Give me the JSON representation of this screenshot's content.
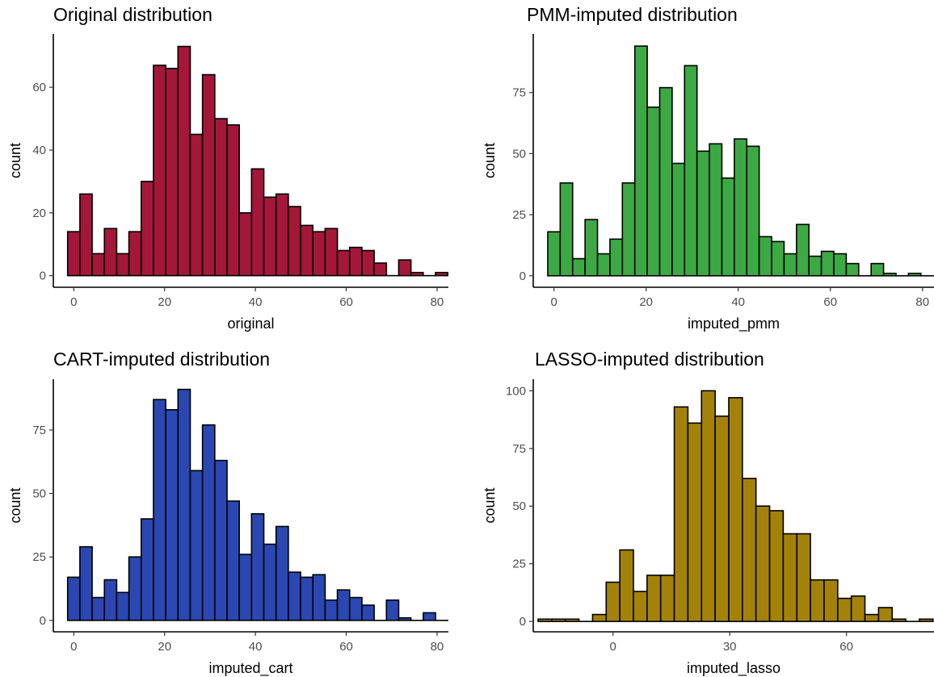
{
  "colors": {
    "original": "#A51739",
    "pmm": "#3DA944",
    "cart": "#2A47B2",
    "lasso": "#A3820A",
    "bar_outline": "#000000"
  },
  "chart_data": [
    {
      "type": "bar",
      "title": "Original distribution",
      "xlabel": "original",
      "ylabel": "count",
      "x_ticks": [
        0,
        20,
        40,
        60,
        80
      ],
      "y_ticks": [
        0,
        20,
        40,
        60
      ],
      "bin_width": 2.7,
      "bin_centers": [
        0,
        2.7,
        5.4,
        8.1,
        10.8,
        13.5,
        16.2,
        18.9,
        21.6,
        24.3,
        27,
        29.7,
        32.4,
        35.1,
        37.8,
        40.5,
        43.2,
        45.9,
        48.6,
        51.3,
        54,
        56.7,
        59.4,
        62.1,
        64.8,
        67.5,
        70.2,
        72.9,
        75.6,
        78.3,
        81
      ],
      "values": [
        14,
        26,
        7,
        15,
        7,
        14,
        30,
        67,
        66,
        73,
        45,
        64,
        50,
        48,
        20,
        34,
        25,
        26,
        22,
        16,
        14,
        15,
        8,
        9,
        8,
        4,
        0,
        5,
        1,
        0,
        1
      ],
      "xlim": [
        -4.5,
        82.5
      ],
      "ylim": [
        -3.7,
        77
      ],
      "grid": false,
      "color_key": "original"
    },
    {
      "type": "bar",
      "title": "PMM-imputed distribution",
      "xlabel": "imputed_pmm",
      "ylabel": "count",
      "x_ticks": [
        0,
        20,
        40,
        60,
        80
      ],
      "y_ticks": [
        0,
        25,
        50,
        75
      ],
      "bin_width": 2.7,
      "bin_centers": [
        0,
        2.7,
        5.4,
        8.1,
        10.8,
        13.5,
        16.2,
        18.9,
        21.6,
        24.3,
        27,
        29.7,
        32.4,
        35.1,
        37.8,
        40.5,
        43.2,
        45.9,
        48.6,
        51.3,
        54,
        56.7,
        59.4,
        62.1,
        64.8,
        67.5,
        70.2,
        72.9,
        75.6,
        78.3,
        81
      ],
      "values": [
        18,
        38,
        7,
        23,
        9,
        15,
        38,
        94,
        69,
        77,
        46,
        86,
        51,
        54,
        40,
        56,
        53,
        16,
        14,
        9,
        21,
        8,
        10,
        9,
        5,
        0,
        5,
        1,
        0,
        1,
        0
      ],
      "xlim": [
        -4.5,
        82.5
      ],
      "ylim": [
        -4.7,
        99
      ],
      "grid": false,
      "color_key": "pmm"
    },
    {
      "type": "bar",
      "title": "CART-imputed distribution",
      "xlabel": "imputed_cart",
      "ylabel": "count",
      "x_ticks": [
        0,
        20,
        40,
        60,
        80
      ],
      "y_ticks": [
        0,
        25,
        50,
        75
      ],
      "bin_width": 2.7,
      "bin_centers": [
        0,
        2.7,
        5.4,
        8.1,
        10.8,
        13.5,
        16.2,
        18.9,
        21.6,
        24.3,
        27,
        29.7,
        32.4,
        35.1,
        37.8,
        40.5,
        43.2,
        45.9,
        48.6,
        51.3,
        54,
        56.7,
        59.4,
        62.1,
        64.8,
        67.5,
        70.2,
        72.9,
        75.6,
        78.3,
        81
      ],
      "values": [
        17,
        29,
        9,
        16,
        11,
        25,
        40,
        87,
        83,
        91,
        59,
        77,
        63,
        47,
        26,
        42,
        30,
        37,
        19,
        17,
        18,
        8,
        12,
        9,
        6,
        0,
        8,
        1,
        0,
        3,
        0
      ],
      "xlim": [
        -4.5,
        82.5
      ],
      "ylim": [
        -4.5,
        95
      ],
      "grid": false,
      "color_key": "cart"
    },
    {
      "type": "bar",
      "title": "LASSO-imputed distribution",
      "xlabel": "imputed_lasso",
      "ylabel": "count",
      "x_ticks": [
        0,
        30,
        60
      ],
      "y_ticks": [
        0,
        25,
        50,
        75,
        100
      ],
      "bin_width": 3.5,
      "bin_centers": [
        -17.5,
        -14,
        -10.5,
        -7,
        -3.5,
        0,
        3.5,
        7,
        10.5,
        14,
        17.5,
        21,
        24.5,
        28,
        31.5,
        35,
        38.5,
        42,
        45.5,
        49,
        52.5,
        56,
        59.5,
        63,
        66.5,
        70,
        73.5,
        77,
        80.5
      ],
      "values": [
        1,
        1,
        1,
        0,
        3,
        17,
        31,
        13,
        20,
        20,
        93,
        86,
        100,
        89,
        97,
        62,
        50,
        48,
        38,
        38,
        18,
        18,
        10,
        11,
        3,
        6,
        1,
        0,
        1
      ],
      "xlim": [
        -20.5,
        82.5
      ],
      "ylim": [
        -4.5,
        105
      ],
      "grid": false,
      "color_key": "lasso"
    }
  ]
}
